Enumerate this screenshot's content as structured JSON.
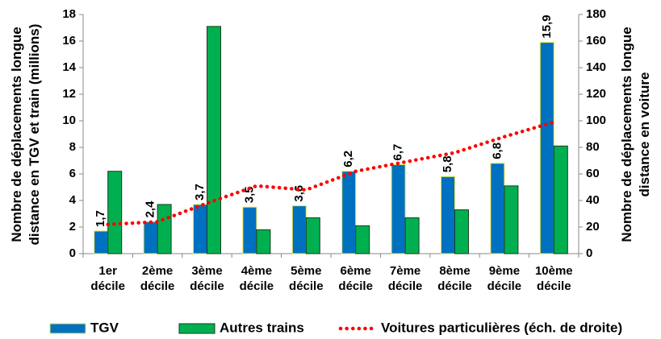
{
  "chart_data": {
    "type": "bar",
    "ylabel": "Nombre de déplacements longue distance en TGV et train (millions)",
    "y2label": "Nombre de déplacements longue distance en voiture",
    "categories": [
      "1er décile",
      "2ème décile",
      "3ème décile",
      "4ème décile",
      "5ème décile",
      "6ème décile",
      "7ème décile",
      "8ème décile",
      "9ème décile",
      "10ème décile"
    ],
    "series": [
      {
        "name": "TGV",
        "type": "bar",
        "color": "#0070c0",
        "stroke": "#e6e64c",
        "values": [
          1.7,
          2.4,
          3.7,
          3.5,
          3.6,
          6.2,
          6.7,
          5.8,
          6.8,
          15.9
        ],
        "value_labels": [
          "1,7",
          "2,4",
          "3,7",
          "3,5",
          "3,6",
          "6,2",
          "6,7",
          "5,8",
          "6,8",
          "15,9"
        ]
      },
      {
        "name": "Autres trains",
        "type": "bar",
        "color": "#00b050",
        "stroke": "#1a3a1a",
        "values": [
          6.2,
          3.7,
          17.1,
          1.8,
          2.7,
          2.1,
          2.7,
          3.3,
          5.1,
          8.1
        ]
      },
      {
        "name": "Voitures particulières (éch. de droite)",
        "type": "line",
        "axis": "y2",
        "color": "#ff0000",
        "values": [
          22,
          24,
          38,
          51,
          48,
          62,
          69,
          76,
          88,
          99
        ]
      }
    ],
    "ylim": [
      0,
      18
    ],
    "yticks": [
      0,
      2,
      4,
      6,
      8,
      10,
      12,
      14,
      16,
      18
    ],
    "y2lim": [
      0,
      180
    ],
    "y2ticks": [
      0,
      20,
      40,
      60,
      80,
      100,
      120,
      140,
      160,
      180
    ]
  }
}
